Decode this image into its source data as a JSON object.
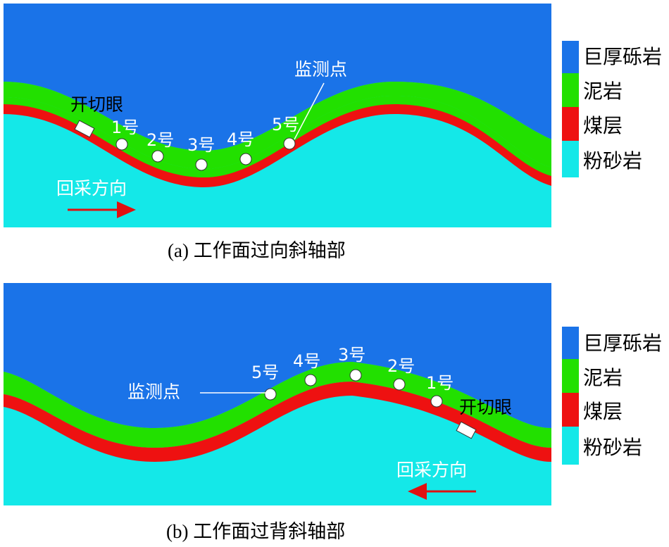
{
  "colors": {
    "thick_sandstone": "#1a73e8",
    "mudstone": "#22e000",
    "coal": "#ee1111",
    "siltstone": "#14e8e8",
    "arrow": "#e01010"
  },
  "legend": [
    "巨厚砾岩",
    "泥岩",
    "煤层",
    "粉砂岩"
  ],
  "panel_a": {
    "caption": "(a) 工作面过向斜轴部",
    "open_cut": "开切眼",
    "monitor": "监测点",
    "direction": "回采方向",
    "points": [
      "1号",
      "2号",
      "3号",
      "4号",
      "5号"
    ]
  },
  "panel_b": {
    "caption": "(b) 工作面过背斜轴部",
    "open_cut": "开切眼",
    "monitor": "监测点",
    "direction": "回采方向",
    "points": [
      "5号",
      "4号",
      "3号",
      "2号",
      "1号"
    ]
  }
}
